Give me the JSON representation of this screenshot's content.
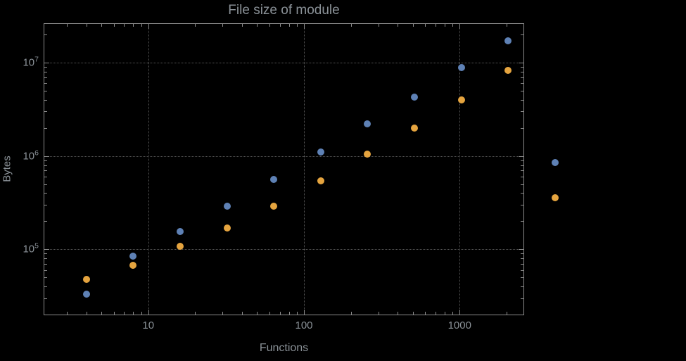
{
  "chart_data": {
    "type": "scatter",
    "title": "File size of module",
    "xlabel": "Functions",
    "ylabel": "Bytes",
    "xscale": "log",
    "yscale": "log",
    "xlim": [
      2.15,
      2570
    ],
    "ylim": [
      20000,
      26000000
    ],
    "grid": "dotted-at-major-ticks",
    "legend": "none",
    "x_ticks": {
      "values": [
        10,
        100,
        1000
      ],
      "labels": [
        "10",
        "100",
        "1000"
      ]
    },
    "y_ticks": {
      "values": [
        100000,
        1000000,
        10000000
      ],
      "labels": [
        {
          "base": "10",
          "exp": "5"
        },
        {
          "base": "10",
          "exp": "6"
        },
        {
          "base": "10",
          "exp": "7"
        }
      ]
    },
    "series": [
      {
        "name": "series-blue",
        "color": "#5e81b5",
        "points": [
          [
            4,
            33000
          ],
          [
            8,
            85000
          ],
          [
            16,
            155000
          ],
          [
            32,
            290000
          ],
          [
            64,
            560000
          ],
          [
            128,
            1100000
          ],
          [
            256,
            2200000
          ],
          [
            512,
            4300000
          ],
          [
            1024,
            8800000
          ],
          [
            2048,
            17000000
          ],
          [
            4096,
            850000
          ]
        ]
      },
      {
        "name": "series-orange",
        "color": "#e5a43f",
        "points": [
          [
            4,
            48000
          ],
          [
            8,
            68000
          ],
          [
            16,
            107000
          ],
          [
            32,
            170000
          ],
          [
            64,
            290000
          ],
          [
            128,
            540000
          ],
          [
            256,
            1050000
          ],
          [
            512,
            2000000
          ],
          [
            1024,
            4000000
          ],
          [
            2048,
            8200000
          ],
          [
            4096,
            360000
          ]
        ]
      }
    ],
    "colors": {
      "background": "#000000",
      "frame": "#8c8c8c",
      "grid": "#575757",
      "text": "#8a9197"
    }
  }
}
